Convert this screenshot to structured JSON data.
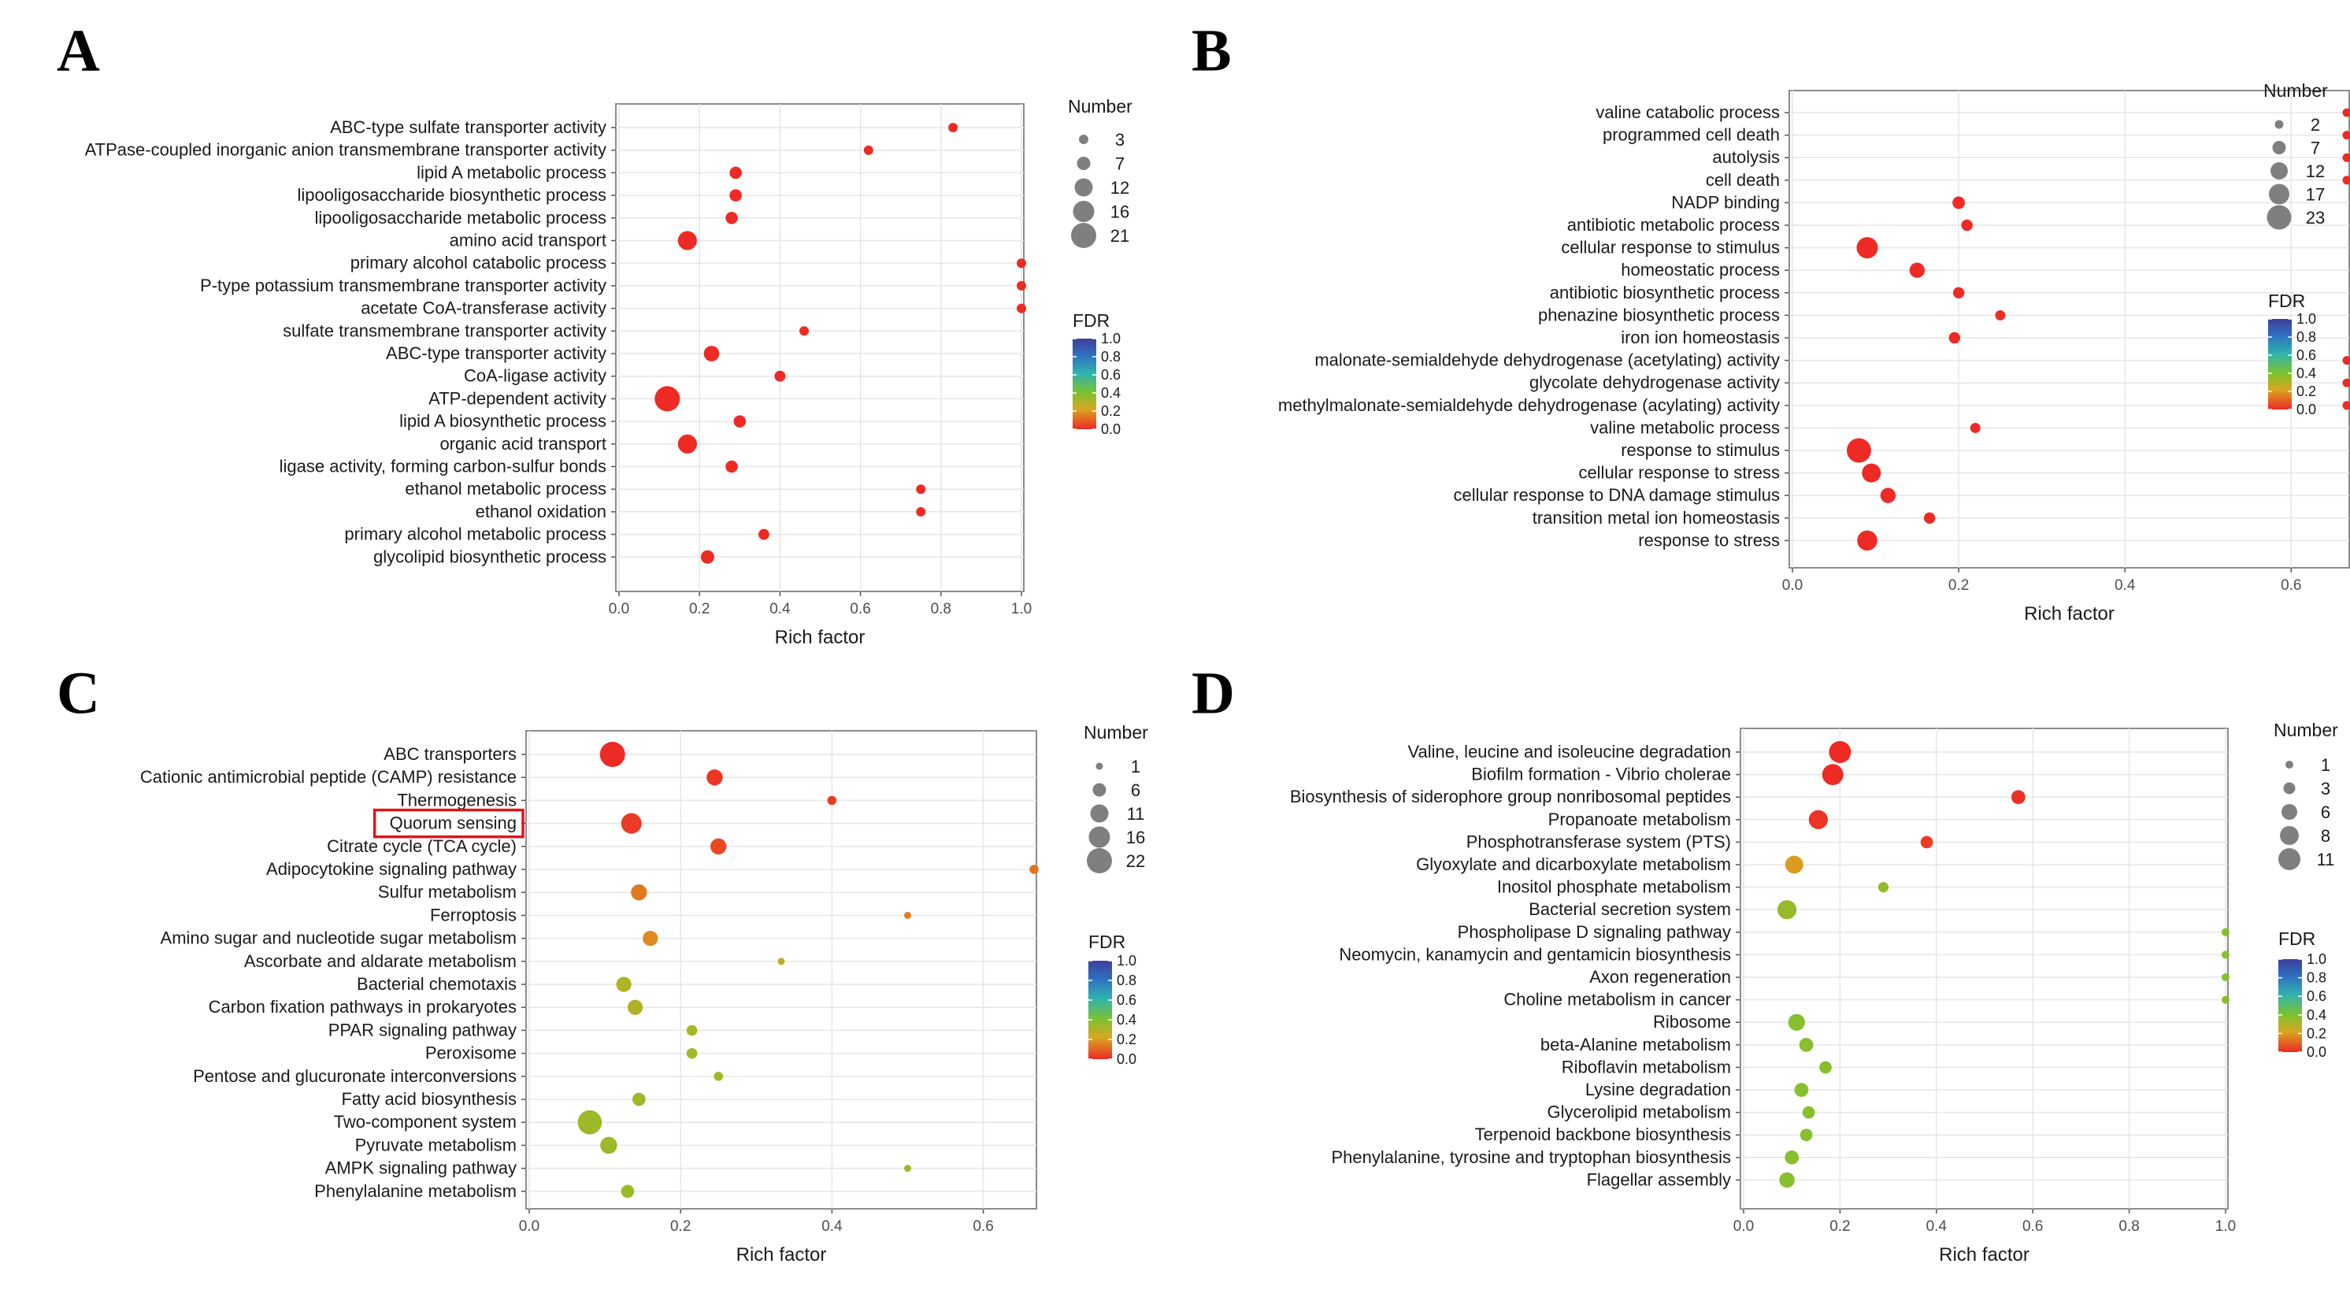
{
  "panels": [
    "A",
    "B",
    "C",
    "D"
  ],
  "chart_data": [
    {
      "panel": "A",
      "type": "scatter",
      "title": "",
      "xlabel": "Rich factor",
      "ylabel": "",
      "xlim": [
        0,
        1.0
      ],
      "xticks": [
        0.0,
        0.2,
        0.4,
        0.6,
        0.8,
        1.0
      ],
      "tick_labels": [
        "0.0",
        "0.2",
        "0.4",
        "0.6",
        "0.8",
        "1.0"
      ],
      "grid": true,
      "size_legend": {
        "title": "Number",
        "values": [
          3,
          7,
          12,
          16,
          21
        ]
      },
      "color_legend": {
        "title": "FDR",
        "min": 0.0,
        "max": 1.0,
        "labels": [
          "1.0",
          "0.8",
          "0.6",
          "0.4",
          "0.2",
          "0.0"
        ]
      },
      "points": [
        {
          "term": "ABC-type sulfate transporter activity",
          "x": 0.83,
          "n": 3,
          "fdr": 0.0
        },
        {
          "term": "ATPase-coupled inorganic anion transmembrane transporter activity",
          "x": 0.62,
          "n": 3,
          "fdr": 0.0
        },
        {
          "term": "lipid A metabolic process",
          "x": 0.29,
          "n": 5,
          "fdr": 0.0
        },
        {
          "term": "lipooligosaccharide biosynthetic process",
          "x": 0.29,
          "n": 5,
          "fdr": 0.0
        },
        {
          "term": "lipooligosaccharide metabolic process",
          "x": 0.28,
          "n": 5,
          "fdr": 0.0
        },
        {
          "term": "amino acid transport",
          "x": 0.17,
          "n": 12,
          "fdr": 0.0
        },
        {
          "term": "primary alcohol catabolic process",
          "x": 1.0,
          "n": 2,
          "fdr": 0.0
        },
        {
          "term": "P-type potassium transmembrane transporter activity",
          "x": 1.0,
          "n": 2,
          "fdr": 0.0
        },
        {
          "term": "acetate CoA-transferase activity",
          "x": 1.0,
          "n": 2,
          "fdr": 0.0
        },
        {
          "term": "sulfate transmembrane transporter activity",
          "x": 0.46,
          "n": 3,
          "fdr": 0.0
        },
        {
          "term": "ABC-type transporter activity",
          "x": 0.23,
          "n": 8,
          "fdr": 0.0
        },
        {
          "term": "CoA-ligase activity",
          "x": 0.4,
          "n": 4,
          "fdr": 0.0
        },
        {
          "term": "ATP-dependent activity",
          "x": 0.12,
          "n": 21,
          "fdr": 0.0
        },
        {
          "term": "lipid A biosynthetic process",
          "x": 0.3,
          "n": 5,
          "fdr": 0.0
        },
        {
          "term": "organic acid transport",
          "x": 0.17,
          "n": 12,
          "fdr": 0.0
        },
        {
          "term": "ligase activity, forming carbon-sulfur bonds",
          "x": 0.28,
          "n": 5,
          "fdr": 0.0
        },
        {
          "term": "ethanol metabolic process",
          "x": 0.75,
          "n": 2,
          "fdr": 0.0
        },
        {
          "term": "ethanol oxidation",
          "x": 0.75,
          "n": 2,
          "fdr": 0.0
        },
        {
          "term": "primary alcohol metabolic process",
          "x": 0.36,
          "n": 4,
          "fdr": 0.0
        },
        {
          "term": "glycolipid biosynthetic process",
          "x": 0.22,
          "n": 6,
          "fdr": 0.0
        }
      ]
    },
    {
      "panel": "B",
      "type": "scatter",
      "title": "",
      "xlabel": "Rich factor",
      "ylabel": "",
      "xlim": [
        0,
        0.667
      ],
      "xticks": [
        0.0,
        0.2,
        0.4,
        0.6
      ],
      "tick_labels": [
        "0.0",
        "0.2",
        "0.4",
        "0.6"
      ],
      "grid": true,
      "size_legend": {
        "title": "Number",
        "values": [
          2,
          7,
          12,
          17,
          23
        ]
      },
      "color_legend": {
        "title": "FDR",
        "min": 0.0,
        "max": 1.0,
        "labels": [
          "1.0",
          "0.8",
          "0.6",
          "0.4",
          "0.2",
          "0.0"
        ]
      },
      "points": [
        {
          "term": "valine catabolic process",
          "x": 0.667,
          "n": 2,
          "fdr": 0.0
        },
        {
          "term": "programmed cell death",
          "x": 0.667,
          "n": 2,
          "fdr": 0.0
        },
        {
          "term": "autolysis",
          "x": 0.667,
          "n": 2,
          "fdr": 0.0
        },
        {
          "term": "cell death",
          "x": 0.667,
          "n": 2,
          "fdr": 0.0
        },
        {
          "term": "NADP binding",
          "x": 0.2,
          "n": 5,
          "fdr": 0.0
        },
        {
          "term": "antibiotic metabolic process",
          "x": 0.21,
          "n": 4,
          "fdr": 0.0
        },
        {
          "term": "cellular response to stimulus",
          "x": 0.09,
          "n": 17,
          "fdr": 0.0
        },
        {
          "term": "homeostatic process",
          "x": 0.15,
          "n": 8,
          "fdr": 0.0
        },
        {
          "term": "antibiotic biosynthetic process",
          "x": 0.2,
          "n": 4,
          "fdr": 0.0
        },
        {
          "term": "phenazine biosynthetic process",
          "x": 0.25,
          "n": 3,
          "fdr": 0.0
        },
        {
          "term": "iron ion homeostasis",
          "x": 0.195,
          "n": 4,
          "fdr": 0.0
        },
        {
          "term": "malonate-semialdehyde dehydrogenase (acetylating) activity",
          "x": 0.667,
          "n": 2,
          "fdr": 0.0
        },
        {
          "term": "glycolate dehydrogenase activity",
          "x": 0.667,
          "n": 2,
          "fdr": 0.0
        },
        {
          "term": "methylmalonate-semialdehyde dehydrogenase (acylating) activity",
          "x": 0.667,
          "n": 2,
          "fdr": 0.0
        },
        {
          "term": "valine metabolic process",
          "x": 0.22,
          "n": 3,
          "fdr": 0.0
        },
        {
          "term": "response to stimulus",
          "x": 0.08,
          "n": 23,
          "fdr": 0.0
        },
        {
          "term": "cellular response to stress",
          "x": 0.095,
          "n": 13,
          "fdr": 0.0
        },
        {
          "term": "cellular response to DNA damage stimulus",
          "x": 0.115,
          "n": 8,
          "fdr": 0.0
        },
        {
          "term": "transition metal ion homeostasis",
          "x": 0.165,
          "n": 4,
          "fdr": 0.0
        },
        {
          "term": "response to stress",
          "x": 0.09,
          "n": 15,
          "fdr": 0.0
        }
      ]
    },
    {
      "panel": "C",
      "type": "scatter",
      "title": "",
      "xlabel": "Rich factor",
      "ylabel": "",
      "xlim": [
        0,
        0.667
      ],
      "xticks": [
        0.0,
        0.2,
        0.4,
        0.6
      ],
      "tick_labels": [
        "0.0",
        "0.2",
        "0.4",
        "0.6"
      ],
      "grid": true,
      "highlighted_term": "Quorum sensing",
      "size_legend": {
        "title": "Number",
        "values": [
          1,
          6,
          11,
          16,
          22
        ]
      },
      "color_legend": {
        "title": "FDR",
        "min": 0.0,
        "max": 1.0,
        "labels": [
          "1.0",
          "0.8",
          "0.6",
          "0.4",
          "0.2",
          "0.0"
        ]
      },
      "points": [
        {
          "term": "ABC transporters",
          "x": 0.11,
          "n": 22,
          "fdr": 0.0
        },
        {
          "term": "Cationic antimicrobial peptide (CAMP) resistance",
          "x": 0.245,
          "n": 8,
          "fdr": 0.02
        },
        {
          "term": "Thermogenesis",
          "x": 0.4,
          "n": 2,
          "fdr": 0.03
        },
        {
          "term": "Quorum sensing",
          "x": 0.135,
          "n": 14,
          "fdr": 0.03
        },
        {
          "term": "Citrate cycle (TCA cycle)",
          "x": 0.25,
          "n": 8,
          "fdr": 0.05
        },
        {
          "term": "Adipocytokine signaling pathway",
          "x": 0.667,
          "n": 2,
          "fdr": 0.13
        },
        {
          "term": "Sulfur metabolism",
          "x": 0.145,
          "n": 8,
          "fdr": 0.14
        },
        {
          "term": "Ferroptosis",
          "x": 0.5,
          "n": 1,
          "fdr": 0.15
        },
        {
          "term": "Amino sugar and nucleotide sugar metabolism",
          "x": 0.16,
          "n": 7,
          "fdr": 0.17
        },
        {
          "term": "Ascorbate and aldarate metabolism",
          "x": 0.333,
          "n": 1,
          "fdr": 0.28
        },
        {
          "term": "Bacterial chemotaxis",
          "x": 0.125,
          "n": 7,
          "fdr": 0.3
        },
        {
          "term": "Carbon fixation pathways in prokaryotes",
          "x": 0.14,
          "n": 7,
          "fdr": 0.3
        },
        {
          "term": "PPAR signaling pathway",
          "x": 0.215,
          "n": 3,
          "fdr": 0.32
        },
        {
          "term": "Peroxisome",
          "x": 0.215,
          "n": 3,
          "fdr": 0.33
        },
        {
          "term": "Pentose and glucuronate interconversions",
          "x": 0.25,
          "n": 2,
          "fdr": 0.33
        },
        {
          "term": "Fatty acid biosynthesis",
          "x": 0.145,
          "n": 5,
          "fdr": 0.33
        },
        {
          "term": "Two-component system",
          "x": 0.08,
          "n": 20,
          "fdr": 0.34
        },
        {
          "term": "Pyruvate metabolism",
          "x": 0.105,
          "n": 9,
          "fdr": 0.34
        },
        {
          "term": "AMPK signaling pathway",
          "x": 0.5,
          "n": 1,
          "fdr": 0.34
        },
        {
          "term": "Phenylalanine metabolism",
          "x": 0.13,
          "n": 5,
          "fdr": 0.34
        }
      ]
    },
    {
      "panel": "D",
      "type": "scatter",
      "title": "",
      "xlabel": "Rich factor",
      "ylabel": "",
      "xlim": [
        0,
        1.0
      ],
      "xticks": [
        0.0,
        0.2,
        0.4,
        0.6,
        0.8,
        1.0
      ],
      "tick_labels": [
        "0.0",
        "0.2",
        "0.4",
        "0.6",
        "0.8",
        "1.0"
      ],
      "grid": true,
      "size_legend": {
        "title": "Number",
        "values": [
          1,
          3,
          6,
          8,
          11
        ]
      },
      "color_legend": {
        "title": "FDR",
        "min": 0.0,
        "max": 1.0,
        "labels": [
          "1.0",
          "0.8",
          "0.6",
          "0.4",
          "0.2",
          "0.0"
        ]
      },
      "points": [
        {
          "term": "Valine, leucine and isoleucine degradation",
          "x": 0.2,
          "n": 11,
          "fdr": 0.0
        },
        {
          "term": "Biofilm formation - Vibrio cholerae",
          "x": 0.185,
          "n": 10,
          "fdr": 0.0
        },
        {
          "term": "Biosynthesis of siderophore group nonribosomal peptides",
          "x": 0.57,
          "n": 4,
          "fdr": 0.01
        },
        {
          "term": "Propanoate metabolism",
          "x": 0.155,
          "n": 8,
          "fdr": 0.02
        },
        {
          "term": "Phosphotransferase system (PTS)",
          "x": 0.38,
          "n": 3,
          "fdr": 0.03
        },
        {
          "term": "Glyoxylate and dicarboxylate metabolism",
          "x": 0.105,
          "n": 7,
          "fdr": 0.2
        },
        {
          "term": "Inositol phosphate metabolism",
          "x": 0.29,
          "n": 2,
          "fdr": 0.35
        },
        {
          "term": "Bacterial secretion system",
          "x": 0.09,
          "n": 8,
          "fdr": 0.35
        },
        {
          "term": "Phospholipase D signaling pathway",
          "x": 1.0,
          "n": 1,
          "fdr": 0.38
        },
        {
          "term": "Neomycin, kanamycin and gentamicin biosynthesis",
          "x": 1.0,
          "n": 1,
          "fdr": 0.38
        },
        {
          "term": "Axon regeneration",
          "x": 1.0,
          "n": 1,
          "fdr": 0.38
        },
        {
          "term": "Choline metabolism in cancer",
          "x": 1.0,
          "n": 1,
          "fdr": 0.38
        },
        {
          "term": "Ribosome",
          "x": 0.11,
          "n": 6,
          "fdr": 0.38
        },
        {
          "term": "beta-Alanine metabolism",
          "x": 0.13,
          "n": 4,
          "fdr": 0.38
        },
        {
          "term": "Riboflavin metabolism",
          "x": 0.17,
          "n": 3,
          "fdr": 0.38
        },
        {
          "term": "Lysine degradation",
          "x": 0.12,
          "n": 4,
          "fdr": 0.38
        },
        {
          "term": "Glycerolipid metabolism",
          "x": 0.135,
          "n": 3,
          "fdr": 0.38
        },
        {
          "term": "Terpenoid backbone biosynthesis",
          "x": 0.13,
          "n": 3,
          "fdr": 0.38
        },
        {
          "term": "Phenylalanine, tyrosine and tryptophan biosynthesis",
          "x": 0.1,
          "n": 4,
          "fdr": 0.38
        },
        {
          "term": "Flagellar assembly",
          "x": 0.09,
          "n": 5,
          "fdr": 0.38
        }
      ]
    }
  ]
}
